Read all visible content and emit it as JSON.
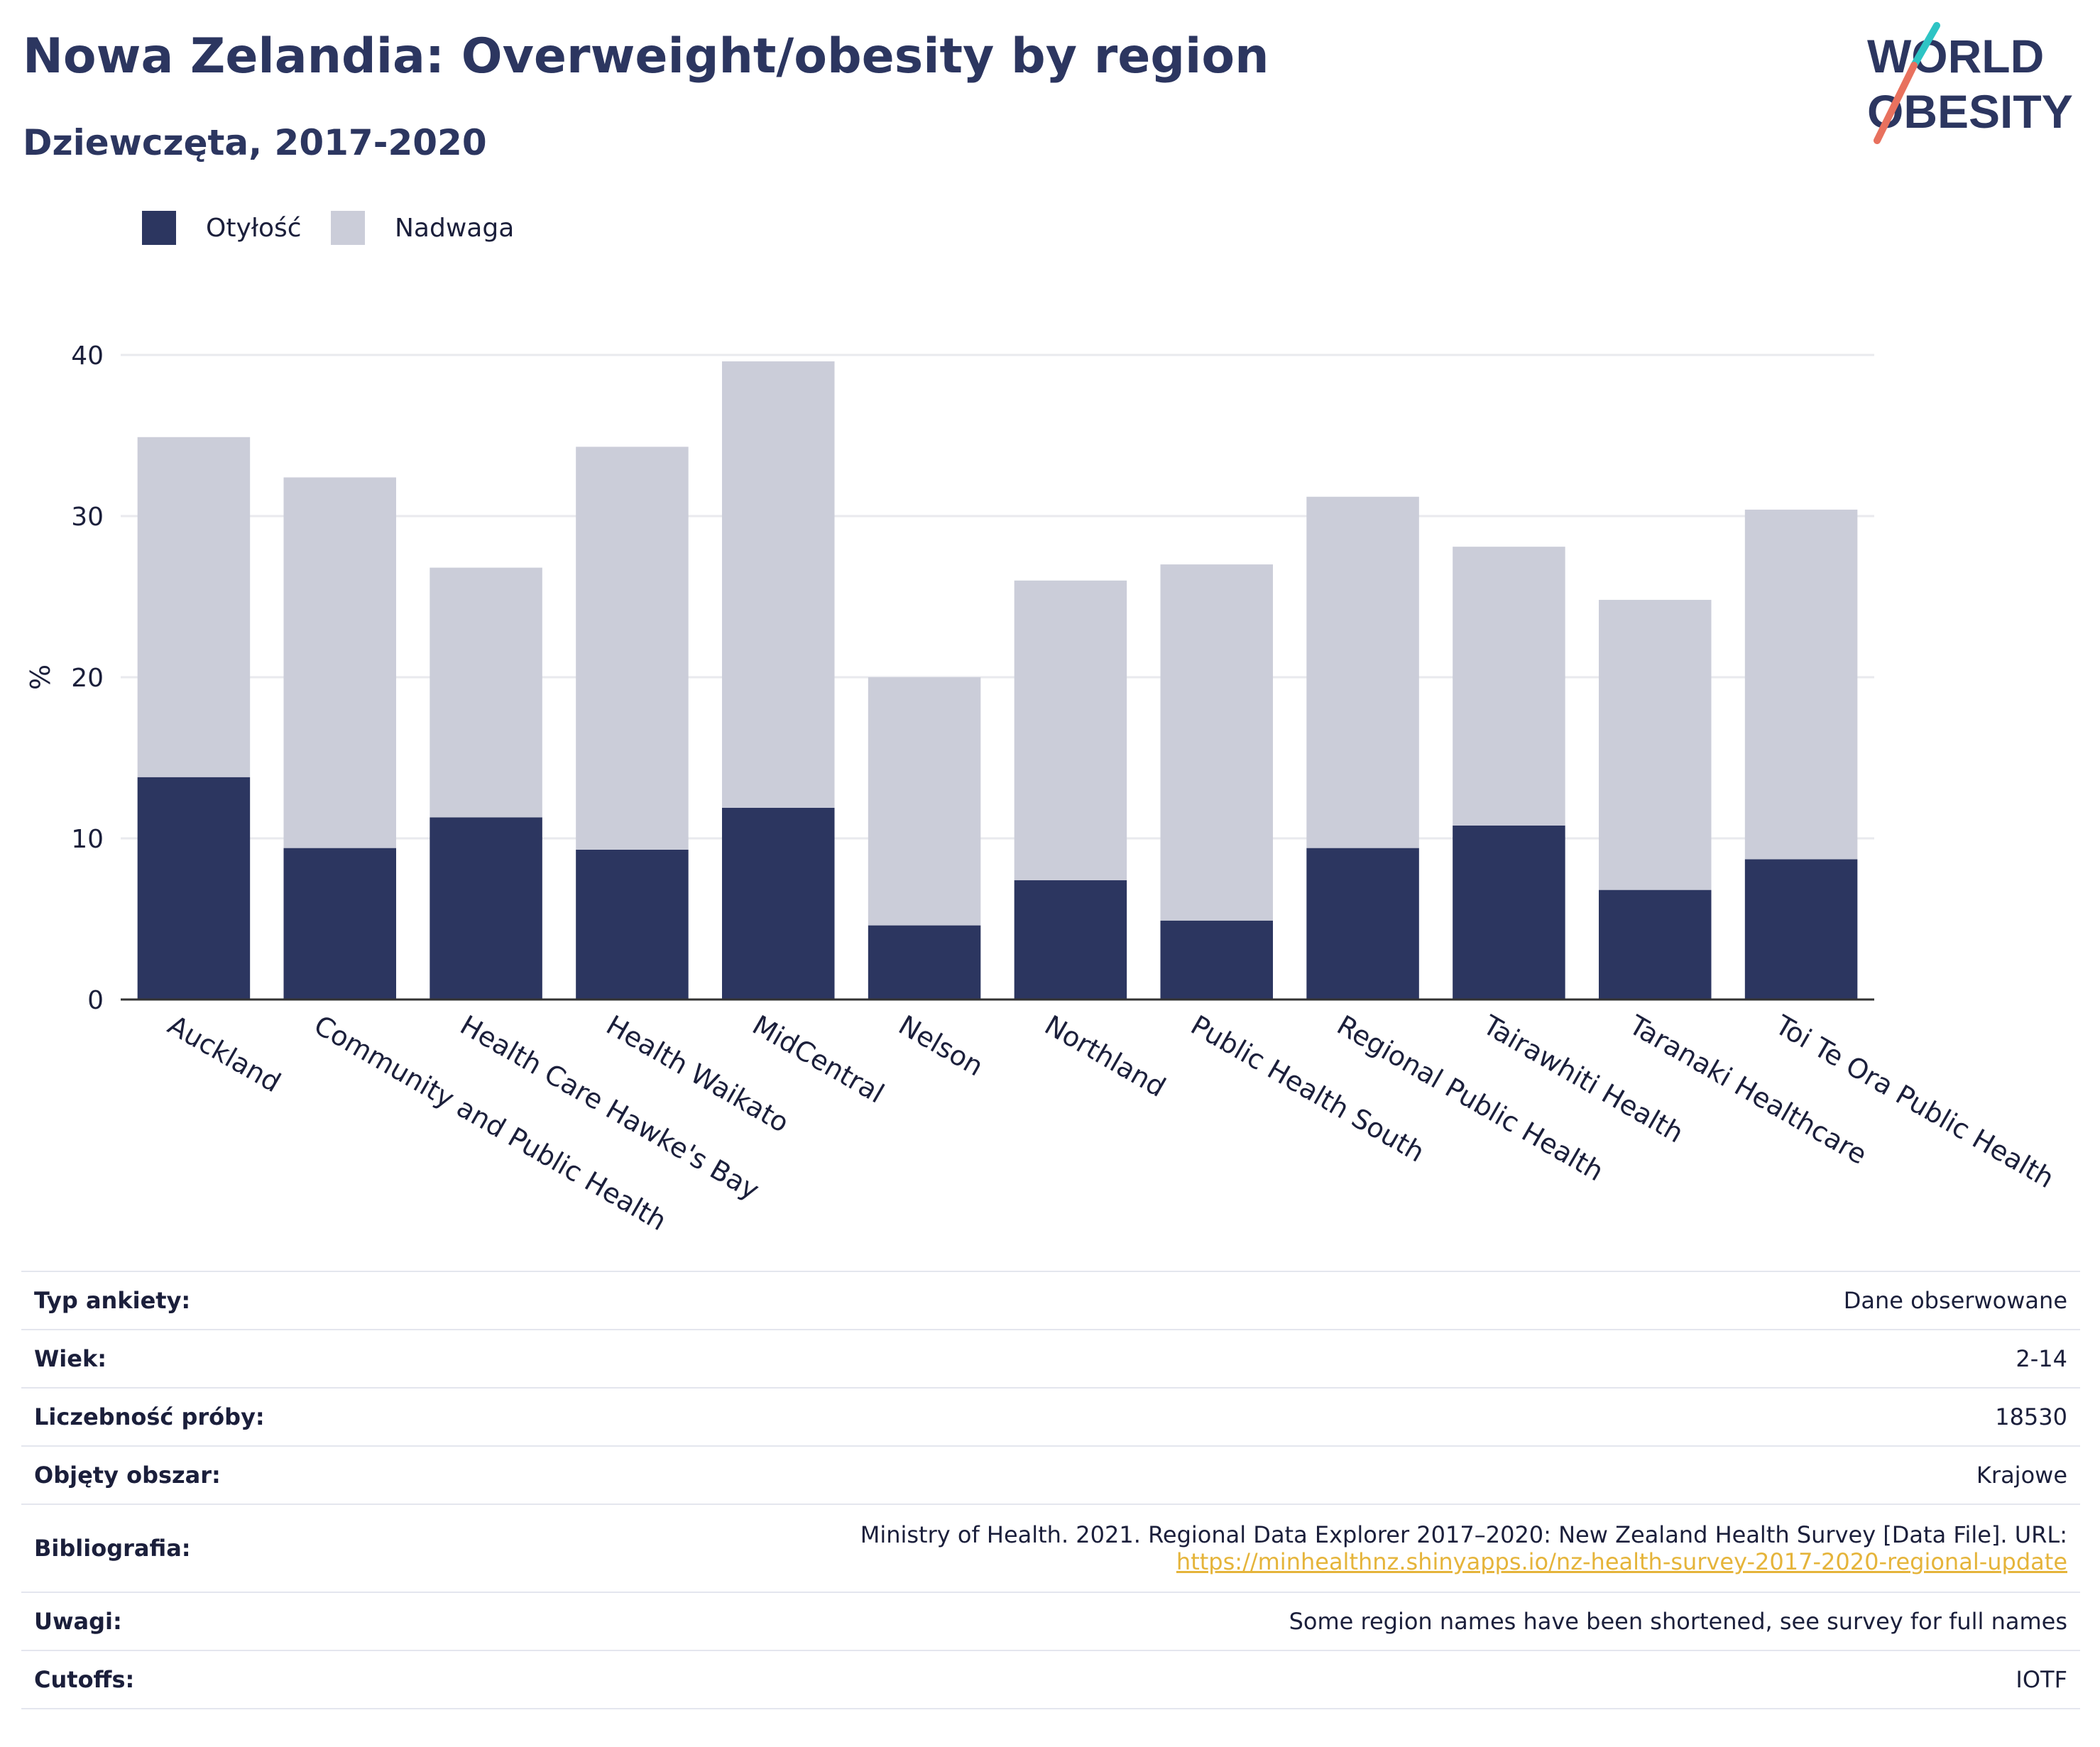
{
  "header": {
    "title": "Nowa Zelandia: Overweight/obesity by region",
    "subtitle": "Dziewczęta, 2017-2020"
  },
  "logo": {
    "line1": "WORLD",
    "line2": "OBESITY",
    "accent_teal": "#2ec4c4",
    "accent_coral": "#e8715e",
    "text_color": "#2c3660"
  },
  "colors": {
    "obesity": "#2c3660",
    "overweight": "#cbcdd9",
    "grid": "#e9eaee",
    "axis": "#333333",
    "link": "#e5b43a"
  },
  "legend": [
    {
      "name": "Otyłość",
      "color": "#2c3660"
    },
    {
      "name": "Nadwaga",
      "color": "#cbcdd9"
    }
  ],
  "chart_data": {
    "type": "bar",
    "stacked": true,
    "title": "Nowa Zelandia: Overweight/obesity by region",
    "subtitle": "Dziewczęta, 2017-2020",
    "ylabel": "%",
    "xlabel": "",
    "ylim": [
      0,
      40
    ],
    "yticks": [
      0,
      10,
      20,
      30,
      40
    ],
    "grid": true,
    "legend_position": "top-left",
    "categories": [
      "Auckland",
      "Community and Public Health",
      "Health Care Hawke's Bay",
      "Health Waikato",
      "MidCentral",
      "Nelson",
      "Northland",
      "Public Health South",
      "Regional Public Health",
      "Tairawhiti Health",
      "Taranaki Healthcare",
      "Toi Te Ora Public Health"
    ],
    "series": [
      {
        "name": "Otyłość",
        "values": [
          13.8,
          9.4,
          11.3,
          9.3,
          11.9,
          4.6,
          7.4,
          4.9,
          9.4,
          10.8,
          6.8,
          8.7
        ]
      },
      {
        "name": "Nadwaga",
        "values": [
          21.1,
          23.0,
          15.5,
          25.0,
          27.7,
          15.4,
          18.6,
          22.1,
          21.8,
          17.3,
          18.0,
          21.7
        ]
      }
    ]
  },
  "info": [
    {
      "label": "Typ ankiety:",
      "value": "Dane obserwowane"
    },
    {
      "label": "Wiek:",
      "value": "2-14"
    },
    {
      "label": "Liczebność próby:",
      "value": "18530"
    },
    {
      "label": "Objęty obszar:",
      "value": "Krajowe"
    },
    {
      "label": "Bibliografia:",
      "value": "Ministry of Health. 2021. Regional Data Explorer 2017–2020: New Zealand Health Survey [Data File]. URL:",
      "link": "https://minhealthnz.shinyapps.io/nz-health-survey-2017-2020-regional-update"
    },
    {
      "label": "Uwagi:",
      "value": "Some region names have been shortened, see survey for full names"
    },
    {
      "label": "Cutoffs:",
      "value": "IOTF"
    }
  ]
}
